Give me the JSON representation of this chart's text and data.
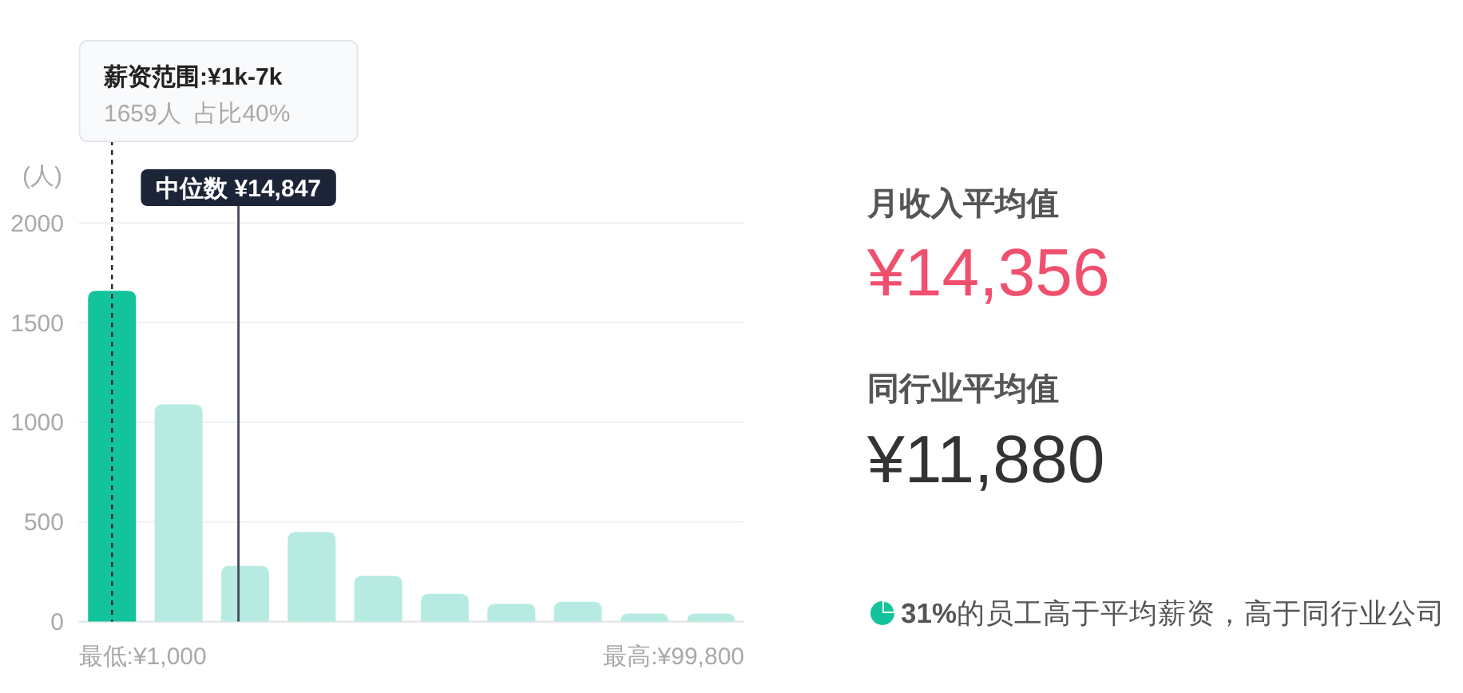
{
  "chart_data": [
    {
      "type": "bar",
      "ylabel": "(人)",
      "categories": [
        null,
        null,
        null,
        null,
        null,
        null,
        null,
        null,
        null,
        null
      ],
      "values": [
        1659,
        1090,
        280,
        450,
        230,
        140,
        90,
        100,
        40,
        40
      ],
      "colors": [
        "#13c39b",
        "#b7ebe1",
        "#b7ebe1",
        "#b7ebe1",
        "#b7ebe1",
        "#b7ebe1",
        "#b7ebe1",
        "#b7ebe1",
        "#b7ebe1",
        "#b7ebe1"
      ],
      "ylim": [
        0,
        2000
      ],
      "yticks": [
        0,
        500,
        1000,
        1500,
        2000
      ],
      "grid": "y",
      "annotations": [
        "薪资范围:¥1k-7k",
        "1659人  占比40%",
        "中位数 ¥14,847",
        "最低:¥1,000",
        "最高:¥99,800"
      ]
    },
    {
      "type": "other",
      "annotations": [
        "月收入平均值",
        "¥14,356",
        "同行业平均值",
        "¥11,880",
        "31%的员工高于平均薪资，高于同行业公司"
      ]
    }
  ]
}
